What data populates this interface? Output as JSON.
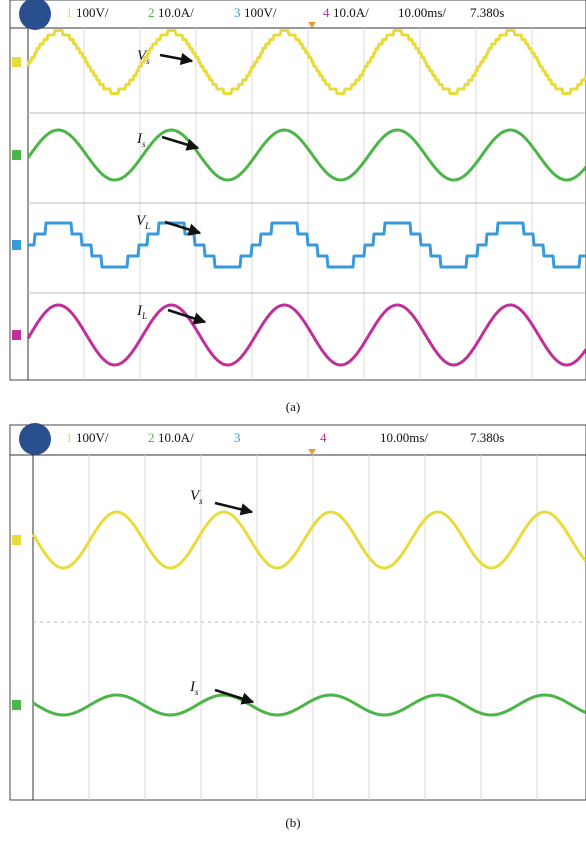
{
  "panels": [
    {
      "channels": [
        {
          "number": "1",
          "scale": "100V/"
        },
        {
          "number": "2",
          "scale": "10.0A/"
        },
        {
          "number": "3",
          "scale": "100V/"
        },
        {
          "number": "4",
          "scale": "10.0A/"
        }
      ],
      "timebase": "10.00ms/",
      "time": "7.380s",
      "labels": [
        {
          "main": "V",
          "sub": "s"
        },
        {
          "main": "I",
          "sub": "s"
        },
        {
          "main": "V",
          "sub": "L"
        },
        {
          "main": "I",
          "sub": "L"
        }
      ],
      "caption": "(a)"
    },
    {
      "channels": [
        {
          "number": "1",
          "scale": "100V/"
        },
        {
          "number": "2",
          "scale": "10.0A/"
        },
        {
          "number": "3"
        },
        {
          "number": "4"
        }
      ],
      "timebase": "10.00ms/",
      "time": "7.380s",
      "labels": [
        {
          "main": "V",
          "sub": "s"
        },
        {
          "main": "I",
          "sub": "s"
        }
      ],
      "caption": "(b)"
    }
  ]
}
